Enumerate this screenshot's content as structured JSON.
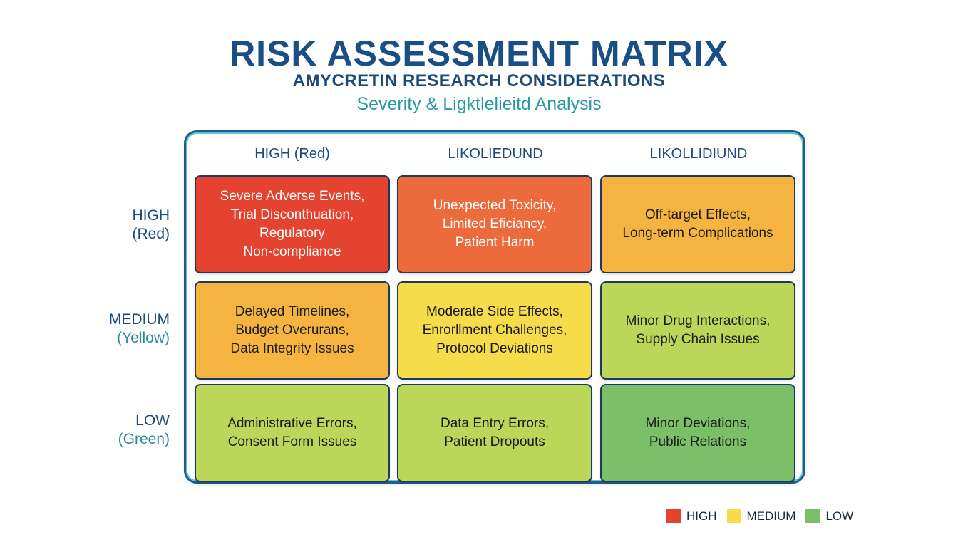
{
  "header": {
    "title": "RISK ASSESSMENT MATRIX",
    "subtitle": "AMYCRETIN RESEARCH CONSIDERATIONS",
    "tagline": "Severity & Ligktlelieitd Analysis"
  },
  "columns": [
    "HIGH (Red)",
    "LIKOLIEDUND",
    "LIKOLLIDIUND"
  ],
  "rows": [
    {
      "level": "HIGH",
      "color_label": "(Red)"
    },
    {
      "level": "MEDIUM",
      "color_label": "(Yellow)"
    },
    {
      "level": "LOW",
      "color_label": "(Green)"
    }
  ],
  "cells": [
    [
      {
        "lines": [
          "Severe Adverse Events,",
          "Trial Disconthuation,",
          "Regulatory",
          "Non-compliance"
        ],
        "fill": "#e3432f",
        "text_color": "#ffffff"
      },
      {
        "lines": [
          "Unexpected Toxicity,",
          "Limited Eficiancy,",
          "Patient Harm"
        ],
        "fill": "#ec6a3c",
        "text_color": "#ffffff"
      },
      {
        "lines": [
          "Off-target Effects,",
          "Long-term Complications"
        ],
        "fill": "#f5b340",
        "text_color": "#1a1a1a"
      }
    ],
    [
      {
        "lines": [
          "Delayed Timelines,",
          "Budget Overurans,",
          "Data Integrity Issues"
        ],
        "fill": "#f5b340",
        "text_color": "#1a1a1a"
      },
      {
        "lines": [
          "Moderate Side Effects,",
          "Enrorllment Challenges,",
          "Protocol Deviations"
        ],
        "fill": "#f6db4a",
        "text_color": "#1a1a1a"
      },
      {
        "lines": [
          "Minor Drug Interactions,",
          "Supply Chain Issues"
        ],
        "fill": "#bcd65a",
        "text_color": "#1a1a1a"
      }
    ],
    [
      {
        "lines": [
          "Administrative Errors,",
          "Consent Form Issues"
        ],
        "fill": "#bcd65a",
        "text_color": "#1a1a1a"
      },
      {
        "lines": [
          "Data Entry Errors,",
          "Patient Dropouts"
        ],
        "fill": "#bcd65a",
        "text_color": "#1a1a1a"
      },
      {
        "lines": [
          "Minor Deviations,",
          "Public Relations"
        ],
        "fill": "#7bbf68",
        "text_color": "#1a1a1a"
      }
    ]
  ],
  "legend": [
    {
      "label": "HIGH",
      "color": "#e3432f"
    },
    {
      "label": "MEDIUM",
      "color": "#f6db4a"
    },
    {
      "label": "LOW",
      "color": "#7bbf68"
    }
  ]
}
